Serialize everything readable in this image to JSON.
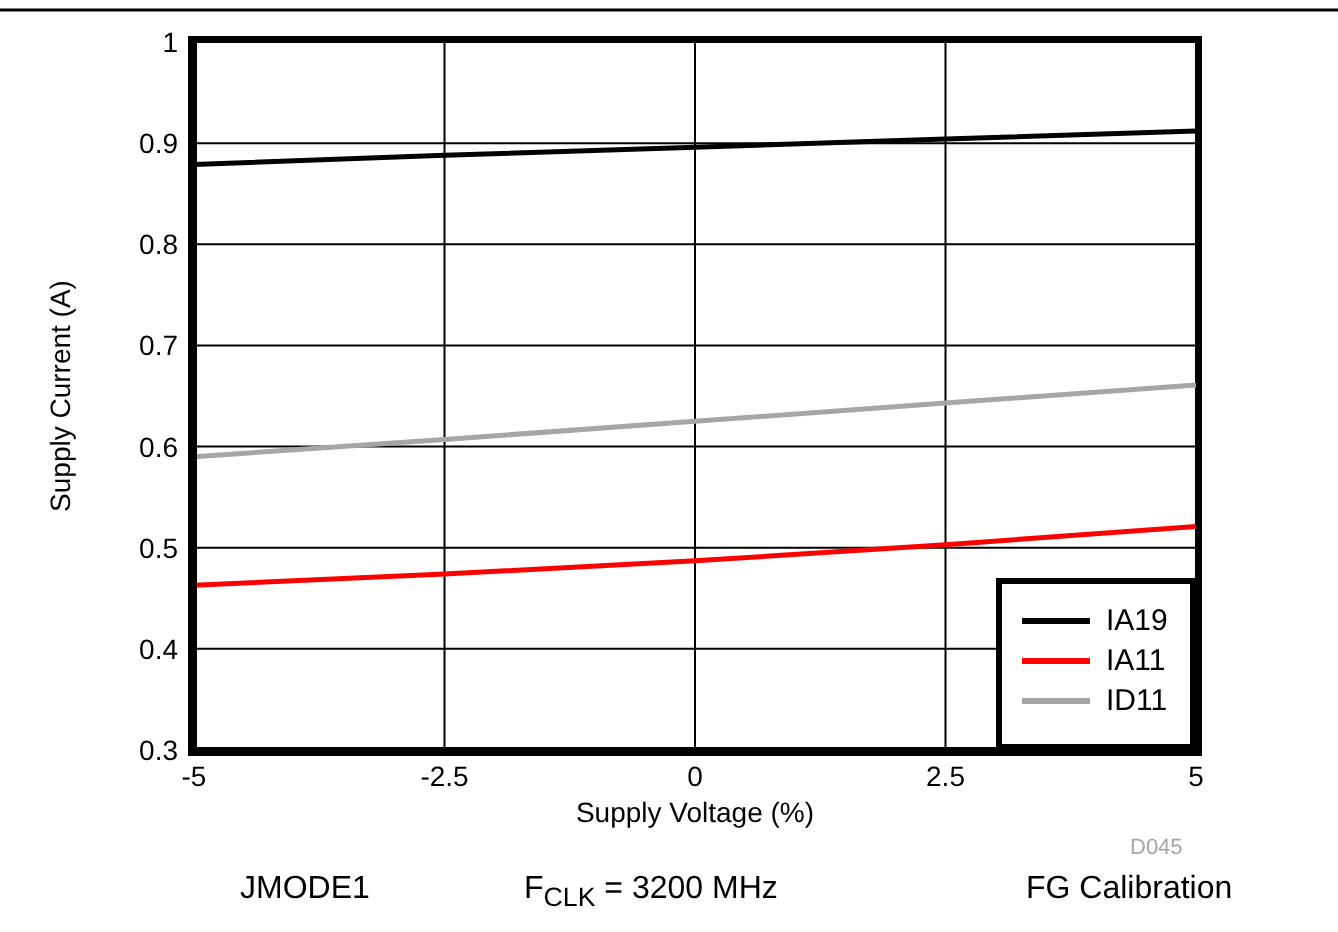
{
  "chart_data": {
    "type": "line",
    "xlabel": "Supply Voltage (%)",
    "ylabel": "Supply Current (A)",
    "x": [
      -5,
      -2.5,
      0,
      2.5,
      5
    ],
    "series": [
      {
        "name": "IA19",
        "color": "#000000",
        "values": [
          0.879,
          0.888,
          0.896,
          0.904,
          0.912
        ]
      },
      {
        "name": "IA11",
        "color": "#ff0000",
        "values": [
          0.463,
          0.474,
          0.487,
          0.503,
          0.521
        ]
      },
      {
        "name": "ID11",
        "color": "#a6a6a6",
        "values": [
          0.59,
          0.607,
          0.625,
          0.643,
          0.661
        ]
      }
    ],
    "xlim": [
      -5,
      5
    ],
    "xticks": [
      -5,
      -2.5,
      0,
      2.5,
      5
    ],
    "ylim": [
      0.3,
      1
    ],
    "yticks": [
      0.3,
      0.4,
      0.5,
      0.6,
      0.7,
      0.8,
      0.9,
      1
    ],
    "grid": true,
    "legend": "bottom right",
    "marker": "none",
    "line_style": "solid",
    "annotations": [
      "D045",
      "JMODE1",
      "F$_{CLK}$ = 3200 MHz",
      "FG Calibration"
    ]
  }
}
